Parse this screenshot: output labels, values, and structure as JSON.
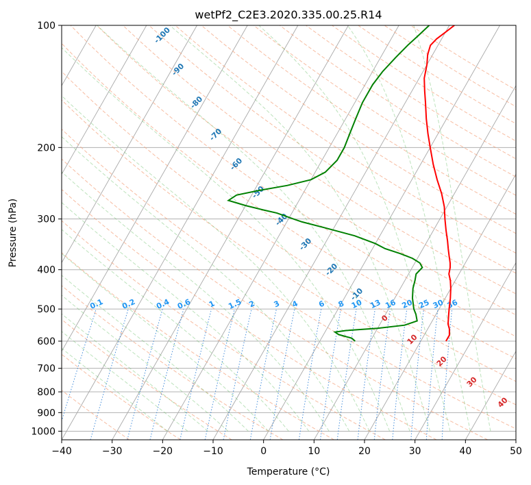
{
  "chart_data": {
    "type": "line",
    "title": "wetPf2_C2E3.2020.335.00.25.R14",
    "xlabel": "Temperature (°C)",
    "ylabel": "Pressure (hPa)",
    "xlim": [
      -40,
      50
    ],
    "ylim": [
      1050,
      100
    ],
    "y_scale": "log",
    "skew": true,
    "x_ticks": [
      "−40",
      "−30",
      "−20",
      "−10",
      "0",
      "10",
      "20",
      "30",
      "40",
      "50"
    ],
    "y_ticks": [
      {
        "p": 100,
        "label": "100"
      },
      {
        "p": 200,
        "label": "200"
      },
      {
        "p": 300,
        "label": "300"
      },
      {
        "p": 400,
        "label": "400"
      },
      {
        "p": 500,
        "label": "500"
      },
      {
        "p": 600,
        "label": "600"
      },
      {
        "p": 700,
        "label": "700"
      },
      {
        "p": 800,
        "label": "800"
      },
      {
        "p": 900,
        "label": "900"
      },
      {
        "p": 1000,
        "label": "1000"
      }
    ],
    "isotherm_labels": [
      "-100",
      "-90",
      "-80",
      "-70",
      "-60",
      "-50",
      "-40",
      "-30",
      "-20",
      "-10",
      "0",
      "10",
      "20",
      "30",
      "40"
    ],
    "mixing_ratio_labels": [
      "0.1",
      "0.2",
      "0.4",
      "0.6",
      "1",
      "1.5",
      "2",
      "3",
      "4",
      "6",
      "8",
      "10",
      "13",
      "16",
      "20",
      "25",
      "30",
      "36"
    ],
    "series": [
      {
        "color": "#ff0000",
        "points": [
          [
            25.0,
            600
          ],
          [
            25.0,
            580
          ],
          [
            24.3,
            560
          ],
          [
            23.5,
            545
          ],
          [
            23.0,
            530
          ],
          [
            22.5,
            515
          ],
          [
            22.0,
            500
          ],
          [
            21.0,
            470
          ],
          [
            20.0,
            445
          ],
          [
            19.0,
            425
          ],
          [
            18.0,
            410
          ],
          [
            17.5,
            395
          ],
          [
            17.0,
            385
          ],
          [
            16.0,
            370
          ],
          [
            15.0,
            355
          ],
          [
            14.0,
            340
          ],
          [
            12.5,
            320
          ],
          [
            11.0,
            300
          ],
          [
            9.5,
            280
          ],
          [
            7.5,
            260
          ],
          [
            5.0,
            240
          ],
          [
            2.5,
            220
          ],
          [
            0.0,
            200
          ],
          [
            -2.0,
            185
          ],
          [
            -4.0,
            170
          ],
          [
            -6.0,
            155
          ],
          [
            -7.5,
            145
          ],
          [
            -9.0,
            135
          ],
          [
            -10.0,
            125
          ],
          [
            -11.0,
            118
          ],
          [
            -11.5,
            112
          ],
          [
            -11.0,
            108
          ],
          [
            -10.0,
            104
          ],
          [
            -9.0,
            100
          ]
        ]
      },
      {
        "color": "#008000",
        "points": [
          [
            7.0,
            600
          ],
          [
            6.0,
            590
          ],
          [
            3.0,
            578
          ],
          [
            2.0,
            570
          ],
          [
            4.0,
            565
          ],
          [
            10.0,
            558
          ],
          [
            15.0,
            548
          ],
          [
            17.0,
            535
          ],
          [
            16.0,
            515
          ],
          [
            15.0,
            500
          ],
          [
            13.5,
            470
          ],
          [
            12.5,
            445
          ],
          [
            12.0,
            425
          ],
          [
            11.5,
            410
          ],
          [
            12.0,
            395
          ],
          [
            11.0,
            385
          ],
          [
            9.0,
            375
          ],
          [
            6.0,
            365
          ],
          [
            2.5,
            355
          ],
          [
            0.0,
            345
          ],
          [
            -5.0,
            330
          ],
          [
            -12.0,
            315
          ],
          [
            -17.0,
            305
          ],
          [
            -19.0,
            300
          ],
          [
            -21.0,
            295
          ],
          [
            -23.0,
            290
          ],
          [
            -26.0,
            285
          ],
          [
            -30.0,
            278
          ],
          [
            -34.0,
            270
          ],
          [
            -33.0,
            262
          ],
          [
            -29.0,
            255
          ],
          [
            -24.0,
            248
          ],
          [
            -20.0,
            240
          ],
          [
            -18.0,
            230
          ],
          [
            -17.0,
            215
          ],
          [
            -17.0,
            200
          ],
          [
            -17.5,
            185
          ],
          [
            -18.0,
            170
          ],
          [
            -18.5,
            155
          ],
          [
            -18.5,
            140
          ],
          [
            -18.0,
            130
          ],
          [
            -17.0,
            120
          ],
          [
            -16.0,
            112
          ],
          [
            -15.0,
            106
          ],
          [
            -14.0,
            100
          ]
        ]
      }
    ]
  }
}
